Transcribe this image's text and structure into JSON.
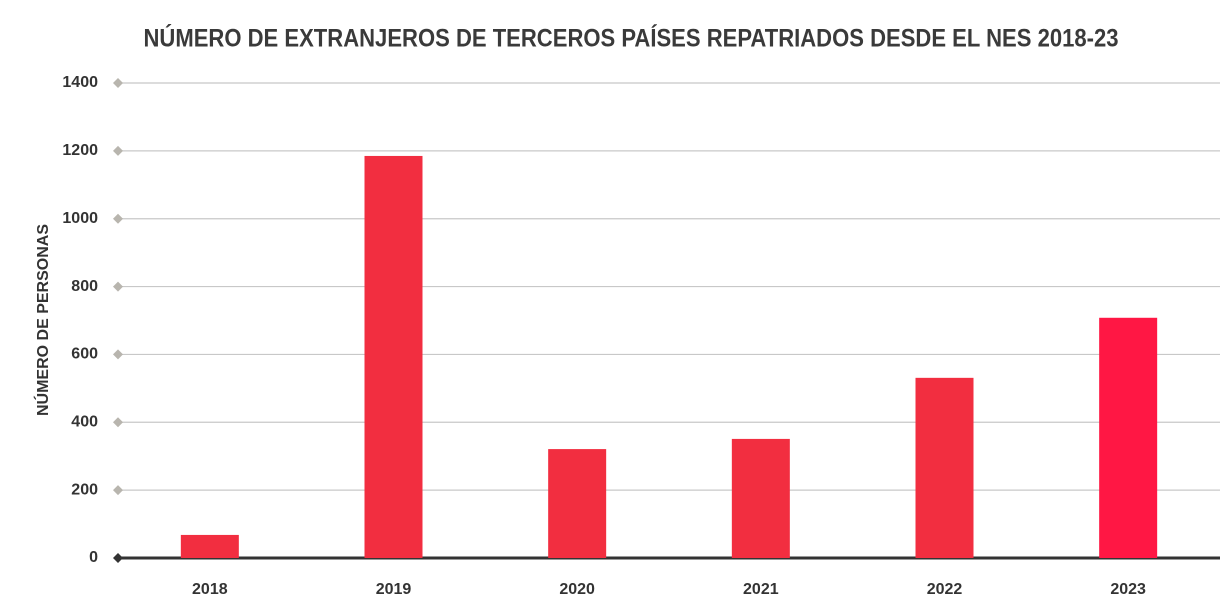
{
  "chart_data": {
    "type": "bar",
    "title": "NÚMERO DE EXTRANJEROS DE TERCEROS PAÍSES REPATRIADOS DESDE EL NES 2018-23",
    "ylabel": "NÚMERO DE PERSONAS",
    "categories": [
      "2018",
      "2019",
      "2020",
      "2021",
      "2022",
      "2023"
    ],
    "values": [
      68,
      1185,
      321,
      351,
      531,
      708
    ],
    "colors": [
      "#f22e40",
      "#f22e40",
      "#f22e40",
      "#f22e40",
      "#f22e40",
      "#ff1744"
    ],
    "ylim": [
      0,
      1400
    ],
    "yticks": [
      0,
      200,
      400,
      600,
      800,
      1000,
      1200,
      1400
    ],
    "grid": true
  }
}
